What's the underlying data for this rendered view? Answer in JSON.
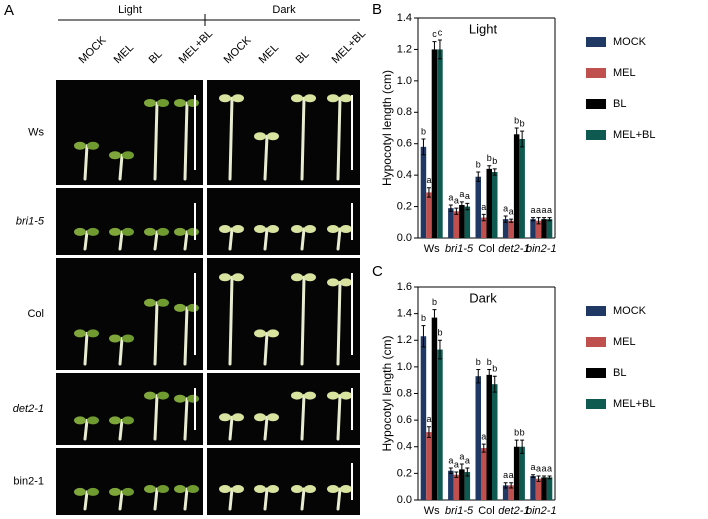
{
  "panel_a": {
    "label": "A",
    "conditions": [
      "Light",
      "Dark"
    ],
    "treatments": [
      "MOCK",
      "MEL",
      "BL",
      "MEL+BL"
    ],
    "genotypes": [
      "Ws",
      "bri1-5",
      "Col",
      "det2-1",
      "bin2-1"
    ]
  },
  "chart_data": [
    {
      "type": "bar",
      "panel": "B",
      "title": "Light",
      "y_label": "Hypocotyl length (cm)",
      "categories": [
        "Ws",
        "bri1-5",
        "Col",
        "det2-1",
        "bin2-1"
      ],
      "ylim": [
        0,
        1.4
      ],
      "yticks": [
        {
          "value": 0,
          "label": "0.0"
        },
        0.2,
        0.4,
        0.6,
        0.8,
        {
          "value": 1,
          "label": "1.0"
        },
        1.2,
        1.4
      ],
      "series": [
        {
          "name": "MOCK",
          "color": "#1f3864",
          "values": [
            0.58,
            0.19,
            0.39,
            0.12,
            0.12
          ],
          "errors": [
            0.05,
            0.02,
            0.03,
            0.02,
            0.01
          ],
          "letters": [
            "b",
            "a",
            "b",
            "a",
            "a"
          ]
        },
        {
          "name": "MEL",
          "color": "#c0504d",
          "values": [
            0.29,
            0.17,
            0.13,
            0.11,
            0.11
          ],
          "errors": [
            0.03,
            0.02,
            0.02,
            0.01,
            0.02
          ],
          "letters": [
            "a",
            "a",
            "a",
            "a",
            "a"
          ]
        },
        {
          "name": "BL",
          "color": "#000000",
          "values": [
            1.2,
            0.21,
            0.44,
            0.66,
            0.12
          ],
          "errors": [
            0.05,
            0.02,
            0.02,
            0.04,
            0.01
          ],
          "letters": [
            "c",
            "a",
            "b",
            "b",
            "a"
          ]
        },
        {
          "name": "MEL+BL",
          "color": "#0f5a50",
          "values": [
            1.2,
            0.2,
            0.42,
            0.63,
            0.12
          ],
          "errors": [
            0.06,
            0.02,
            0.02,
            0.05,
            0.01
          ],
          "letters": [
            "c",
            "a",
            "b",
            "b",
            "a"
          ]
        }
      ]
    },
    {
      "type": "bar",
      "panel": "C",
      "title": "Dark",
      "y_label": "Hypocotyl length (cm)",
      "categories": [
        "Ws",
        "bri1-5",
        "Col",
        "det2-1",
        "bin2-1"
      ],
      "ylim": [
        0,
        1.6
      ],
      "yticks": [
        {
          "value": 0,
          "label": "0.0"
        },
        0.2,
        0.4,
        0.6,
        0.8,
        {
          "value": 1,
          "label": "1.0"
        },
        1.2,
        1.4,
        1.6
      ],
      "series": [
        {
          "name": "MOCK",
          "color": "#1f3864",
          "values": [
            1.23,
            0.22,
            0.93,
            0.11,
            0.18
          ],
          "errors": [
            0.08,
            0.02,
            0.05,
            0.02,
            0.01
          ],
          "letters": [
            "b",
            "a",
            "b",
            "a",
            "a"
          ]
        },
        {
          "name": "MEL",
          "color": "#c0504d",
          "values": [
            0.51,
            0.19,
            0.39,
            0.11,
            0.16
          ],
          "errors": [
            0.04,
            0.02,
            0.03,
            0.02,
            0.02
          ],
          "letters": [
            "a",
            "a",
            "a",
            "a",
            "a"
          ]
        },
        {
          "name": "BL",
          "color": "#000000",
          "values": [
            1.37,
            0.23,
            0.94,
            0.4,
            0.17
          ],
          "errors": [
            0.06,
            0.04,
            0.04,
            0.05,
            0.01
          ],
          "letters": [
            "b",
            "a",
            "b",
            "b",
            "a"
          ]
        },
        {
          "name": "MEL+BL",
          "color": "#0f5a50",
          "values": [
            1.13,
            0.21,
            0.87,
            0.4,
            0.17
          ],
          "errors": [
            0.07,
            0.03,
            0.06,
            0.05,
            0.01
          ],
          "letters": [
            "b",
            "a",
            "b",
            "b",
            "a"
          ]
        }
      ]
    }
  ]
}
